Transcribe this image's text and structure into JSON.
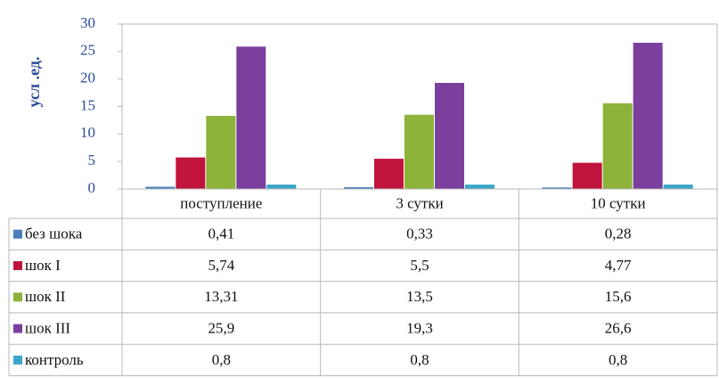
{
  "chart_data": {
    "type": "bar",
    "y_label": "усл .ед.",
    "categories": [
      "поступление",
      "3 сутки",
      "10 сутки"
    ],
    "series": [
      {
        "name": "без шока",
        "color": "#4a7ebb",
        "values": [
          0.41,
          0.33,
          0.28
        ],
        "value_labels": [
          "0,41",
          "0,33",
          "0,28"
        ]
      },
      {
        "name": "шок I",
        "color": "#c0143c",
        "values": [
          5.74,
          5.5,
          4.77
        ],
        "value_labels": [
          "5,74",
          "5,5",
          "4,77"
        ]
      },
      {
        "name": "шок II",
        "color": "#8db33a",
        "values": [
          13.31,
          13.5,
          15.6
        ],
        "value_labels": [
          "13,31",
          "13,5",
          "15,6"
        ]
      },
      {
        "name": "шок III",
        "color": "#7b3f9e",
        "values": [
          25.9,
          19.3,
          26.6
        ],
        "value_labels": [
          "25,9",
          "19,3",
          "26,6"
        ]
      },
      {
        "name": "контроль",
        "color": "#3aa6c8",
        "values": [
          0.8,
          0.8,
          0.8
        ],
        "value_labels": [
          "0,8",
          "0,8",
          "0,8"
        ]
      }
    ],
    "ylim": [
      0,
      30
    ],
    "yticks": [
      0,
      5,
      10,
      15,
      20,
      25,
      30
    ]
  }
}
